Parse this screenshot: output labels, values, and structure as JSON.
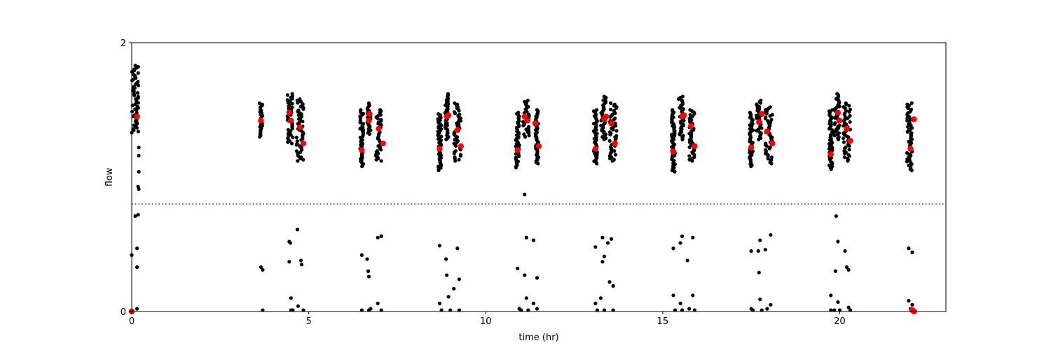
{
  "chart_data": {
    "type": "scatter",
    "title": "",
    "xlabel": "time (hr)",
    "ylabel": "flow",
    "xlim": [
      0,
      23
    ],
    "ylim": [
      0,
      2
    ],
    "xticks": [
      0,
      5,
      10,
      15,
      20
    ],
    "yticks": [
      0,
      2
    ],
    "grid": false,
    "legend": "none",
    "threshold": {
      "y": 0.8,
      "style": "dotted",
      "color": "#0000ff"
    },
    "series": [
      {
        "marker_color": "#000000",
        "marker": "dot-small",
        "clusters": [
          {
            "x_start": 0.0,
            "x_end": 0.2,
            "y_min": 1.33,
            "y_max": 1.83
          },
          {
            "x_start": 3.6,
            "x_end": 3.7,
            "y_min": 1.3,
            "y_max": 1.55
          },
          {
            "x_start": 4.4,
            "x_end": 4.55,
            "y_min": 1.25,
            "y_max": 1.62
          },
          {
            "x_start": 4.65,
            "x_end": 4.85,
            "y_min": 1.12,
            "y_max": 1.58
          },
          {
            "x_start": 6.45,
            "x_end": 6.55,
            "y_min": 1.08,
            "y_max": 1.5
          },
          {
            "x_start": 6.65,
            "x_end": 6.75,
            "y_min": 1.32,
            "y_max": 1.55
          },
          {
            "x_start": 6.9,
            "x_end": 7.05,
            "y_min": 1.12,
            "y_max": 1.5
          },
          {
            "x_start": 8.65,
            "x_end": 8.75,
            "y_min": 1.05,
            "y_max": 1.47
          },
          {
            "x_start": 8.85,
            "x_end": 8.95,
            "y_min": 1.28,
            "y_max": 1.62
          },
          {
            "x_start": 9.1,
            "x_end": 9.3,
            "y_min": 1.12,
            "y_max": 1.55
          },
          {
            "x_start": 10.85,
            "x_end": 10.95,
            "y_min": 1.07,
            "y_max": 1.48
          },
          {
            "x_start": 11.05,
            "x_end": 11.25,
            "y_min": 1.3,
            "y_max": 1.57
          },
          {
            "x_start": 11.4,
            "x_end": 11.5,
            "y_min": 1.1,
            "y_max": 1.5
          },
          {
            "x_start": 13.05,
            "x_end": 13.15,
            "y_min": 1.1,
            "y_max": 1.5
          },
          {
            "x_start": 13.25,
            "x_end": 13.4,
            "y_min": 1.28,
            "y_max": 1.6
          },
          {
            "x_start": 13.5,
            "x_end": 13.7,
            "y_min": 1.12,
            "y_max": 1.55
          },
          {
            "x_start": 15.25,
            "x_end": 15.35,
            "y_min": 1.04,
            "y_max": 1.5
          },
          {
            "x_start": 15.45,
            "x_end": 15.6,
            "y_min": 1.28,
            "y_max": 1.6
          },
          {
            "x_start": 15.75,
            "x_end": 15.9,
            "y_min": 1.12,
            "y_max": 1.5
          },
          {
            "x_start": 17.45,
            "x_end": 17.55,
            "y_min": 1.08,
            "y_max": 1.48
          },
          {
            "x_start": 17.65,
            "x_end": 17.8,
            "y_min": 1.28,
            "y_max": 1.57
          },
          {
            "x_start": 17.9,
            "x_end": 18.1,
            "y_min": 1.1,
            "y_max": 1.52
          },
          {
            "x_start": 19.7,
            "x_end": 19.8,
            "y_min": 1.06,
            "y_max": 1.5
          },
          {
            "x_start": 19.85,
            "x_end": 20.0,
            "y_min": 1.28,
            "y_max": 1.62
          },
          {
            "x_start": 20.1,
            "x_end": 20.3,
            "y_min": 1.12,
            "y_max": 1.55
          },
          {
            "x_start": 21.9,
            "x_end": 22.05,
            "y_min": 1.05,
            "y_max": 1.55
          }
        ],
        "points": [
          [
            0.0,
            0.42
          ],
          [
            0.1,
            0.71
          ],
          [
            0.15,
            0.47
          ],
          [
            0.15,
            0.33
          ],
          [
            0.15,
            0.02
          ],
          [
            0.18,
            0.93
          ],
          [
            0.18,
            0.72
          ],
          [
            0.2,
            0.91
          ],
          [
            0.2,
            1.04
          ],
          [
            0.2,
            1.16
          ],
          [
            0.2,
            1.22
          ],
          [
            3.65,
            0.33
          ],
          [
            3.7,
            0.31
          ],
          [
            3.7,
            0.01
          ],
          [
            4.45,
            0.52
          ],
          [
            4.48,
            0.51
          ],
          [
            4.45,
            0.37
          ],
          [
            4.5,
            0.1
          ],
          [
            4.55,
            0.01
          ],
          [
            4.5,
            0.01
          ],
          [
            4.68,
            0.61
          ],
          [
            4.7,
            0.04
          ],
          [
            4.78,
            0.38
          ],
          [
            4.8,
            0.35
          ],
          [
            4.85,
            0.01
          ],
          [
            6.5,
            0.42
          ],
          [
            6.5,
            0.01
          ],
          [
            6.65,
            0.39
          ],
          [
            6.68,
            0.3
          ],
          [
            6.7,
            0.26
          ],
          [
            6.75,
            0.02
          ],
          [
            6.7,
            0.01
          ],
          [
            6.95,
            0.55
          ],
          [
            6.95,
            0.06
          ],
          [
            7.05,
            0.56
          ],
          [
            7.05,
            0.01
          ],
          [
            8.7,
            0.49
          ],
          [
            8.7,
            0.06
          ],
          [
            8.75,
            0.01
          ],
          [
            8.88,
            0.39
          ],
          [
            8.9,
            0.27
          ],
          [
            8.95,
            0.11
          ],
          [
            9.0,
            0.01
          ],
          [
            9.1,
            0.17
          ],
          [
            9.2,
            0.47
          ],
          [
            9.25,
            0.24
          ],
          [
            9.25,
            0.01
          ],
          [
            10.9,
            0.32
          ],
          [
            10.95,
            0.02
          ],
          [
            11.0,
            0.01
          ],
          [
            11.1,
            0.87
          ],
          [
            11.15,
            0.55
          ],
          [
            11.1,
            0.27
          ],
          [
            11.15,
            0.1
          ],
          [
            11.2,
            0.01
          ],
          [
            11.35,
            0.53
          ],
          [
            11.35,
            0.06
          ],
          [
            11.45,
            0.25
          ],
          [
            11.45,
            0.02
          ],
          [
            13.1,
            0.48
          ],
          [
            13.1,
            0.06
          ],
          [
            13.15,
            0.01
          ],
          [
            13.3,
            0.55
          ],
          [
            13.3,
            0.37
          ],
          [
            13.35,
            0.41
          ],
          [
            13.25,
            0.1
          ],
          [
            13.35,
            0.01
          ],
          [
            13.45,
            0.51
          ],
          [
            13.5,
            0.22
          ],
          [
            13.55,
            0.54
          ],
          [
            13.6,
            0.19
          ],
          [
            13.6,
            0.01
          ],
          [
            15.3,
            0.47
          ],
          [
            15.3,
            0.12
          ],
          [
            15.35,
            0.01
          ],
          [
            15.5,
            0.51
          ],
          [
            15.55,
            0.56
          ],
          [
            15.5,
            0.06
          ],
          [
            15.55,
            0.01
          ],
          [
            15.7,
            0.38
          ],
          [
            15.75,
            0.02
          ],
          [
            15.85,
            0.55
          ],
          [
            15.85,
            0.12
          ],
          [
            15.9,
            0.01
          ],
          [
            17.5,
            0.45
          ],
          [
            17.5,
            0.02
          ],
          [
            17.55,
            0.01
          ],
          [
            17.7,
            0.45
          ],
          [
            17.75,
            0.53
          ],
          [
            17.72,
            0.29
          ],
          [
            17.75,
            0.09
          ],
          [
            17.8,
            0.01
          ],
          [
            17.9,
            0.46
          ],
          [
            17.95,
            0.02
          ],
          [
            18.05,
            0.57
          ],
          [
            18.05,
            0.05
          ],
          [
            19.75,
            0.12
          ],
          [
            19.75,
            0.01
          ],
          [
            19.85,
            0.01
          ],
          [
            19.9,
            0.71
          ],
          [
            19.95,
            0.52
          ],
          [
            19.88,
            0.3
          ],
          [
            19.95,
            0.07
          ],
          [
            20.0,
            0.01
          ],
          [
            20.15,
            0.45
          ],
          [
            20.2,
            0.33
          ],
          [
            20.25,
            0.31
          ],
          [
            20.25,
            0.03
          ],
          [
            20.3,
            0.01
          ],
          [
            21.95,
            0.47
          ],
          [
            22.05,
            0.44
          ],
          [
            21.95,
            0.08
          ],
          [
            22.05,
            0.05
          ],
          [
            22.0,
            0.02
          ],
          [
            22.1,
            0.01
          ]
        ]
      },
      {
        "marker_color": "#ff0000",
        "marker": "dot-large",
        "points": [
          [
            0.0,
            0.0
          ],
          [
            0.15,
            1.45
          ],
          [
            3.65,
            1.42
          ],
          [
            4.45,
            1.48
          ],
          [
            4.5,
            1.42
          ],
          [
            4.75,
            1.37
          ],
          [
            4.85,
            1.25
          ],
          [
            6.5,
            1.2
          ],
          [
            6.7,
            1.42
          ],
          [
            6.72,
            1.47
          ],
          [
            6.98,
            1.36
          ],
          [
            7.1,
            1.25
          ],
          [
            8.7,
            1.21
          ],
          [
            8.9,
            1.45
          ],
          [
            8.95,
            1.46
          ],
          [
            9.2,
            1.35
          ],
          [
            9.3,
            1.23
          ],
          [
            10.9,
            1.2
          ],
          [
            11.1,
            1.45
          ],
          [
            11.18,
            1.42
          ],
          [
            11.4,
            1.4
          ],
          [
            11.5,
            1.23
          ],
          [
            13.1,
            1.21
          ],
          [
            13.35,
            1.43
          ],
          [
            13.4,
            1.45
          ],
          [
            13.55,
            1.4
          ],
          [
            13.65,
            1.25
          ],
          [
            15.3,
            1.19
          ],
          [
            15.55,
            1.45
          ],
          [
            15.6,
            1.46
          ],
          [
            15.8,
            1.38
          ],
          [
            15.9,
            1.23
          ],
          [
            17.5,
            1.22
          ],
          [
            17.72,
            1.41
          ],
          [
            17.8,
            1.47
          ],
          [
            17.95,
            1.34
          ],
          [
            18.1,
            1.25
          ],
          [
            19.75,
            1.17
          ],
          [
            19.95,
            1.48
          ],
          [
            20.0,
            1.42
          ],
          [
            20.2,
            1.36
          ],
          [
            20.3,
            1.27
          ],
          [
            22.0,
            1.21
          ],
          [
            22.1,
            1.43
          ],
          [
            22.05,
            0.01
          ],
          [
            22.1,
            0.0
          ]
        ]
      }
    ]
  }
}
